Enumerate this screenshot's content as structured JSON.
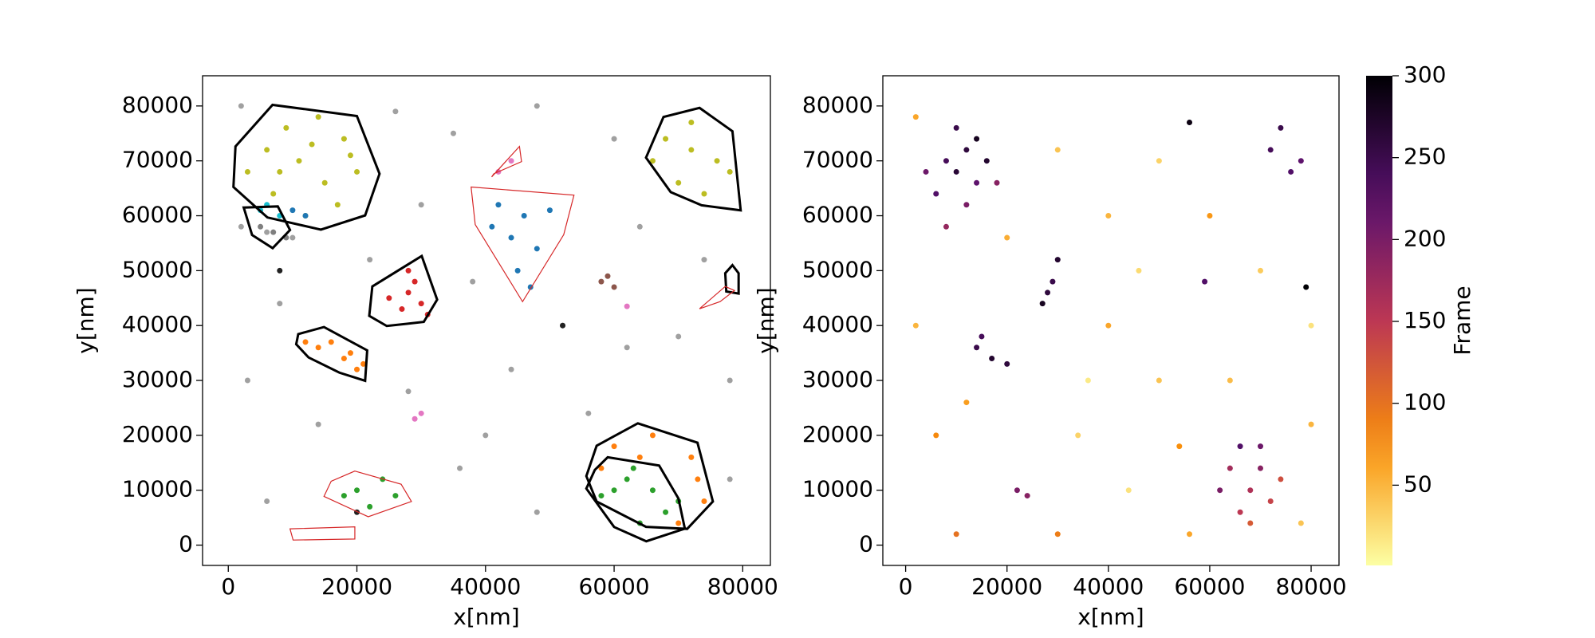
{
  "chart_data": [
    {
      "type": "scatter",
      "xlabel": "x[nm]",
      "ylabel": "y[nm]",
      "xlim": [
        -4000,
        84300
      ],
      "ylim": [
        -3700,
        85500
      ],
      "xticks": [
        0,
        20000,
        40000,
        60000,
        80000
      ],
      "yticks": [
        0,
        10000,
        20000,
        30000,
        40000,
        50000,
        60000,
        70000,
        80000
      ],
      "series": [
        {
          "color": "#a0a0a0",
          "x": [
            2000,
            26000,
            35000,
            48000,
            60000,
            30000,
            38000,
            52000,
            64000,
            74000,
            8000,
            3000,
            14000,
            28000,
            44000,
            56000,
            36000,
            48000,
            78000,
            70000,
            6000,
            40000,
            62000,
            78000,
            22000,
            10000,
            6000,
            2000
          ],
          "y": [
            80000,
            79000,
            75000,
            80000,
            74000,
            62000,
            48000,
            40000,
            58000,
            52000,
            44000,
            30000,
            22000,
            28000,
            32000,
            24000,
            14000,
            6000,
            30000,
            38000,
            8000,
            20000,
            36000,
            12000,
            52000,
            56000,
            57000,
            58000
          ]
        },
        {
          "color": "#bcbd22",
          "x": [
            6000,
            9000,
            14000,
            18000,
            20000,
            17000,
            12000,
            7000,
            3000,
            11000,
            15000,
            13000,
            8000,
            19000,
            68000,
            72000,
            76000,
            70000,
            74000,
            78000,
            66000,
            72000
          ],
          "y": [
            72000,
            76000,
            78000,
            74000,
            68000,
            62000,
            60000,
            64000,
            68000,
            70000,
            66000,
            73000,
            68000,
            71000,
            74000,
            72000,
            70000,
            66000,
            64000,
            68000,
            70000,
            77000
          ]
        },
        {
          "color": "#17becf",
          "x": [
            5000,
            8000,
            6000
          ],
          "y": [
            61000,
            60000,
            62000
          ]
        },
        {
          "color": "#1f77b4",
          "x": [
            10000,
            12000,
            42000,
            46000,
            50000,
            44000,
            48000,
            45000,
            41000,
            47000
          ],
          "y": [
            61000,
            60000,
            62000,
            60000,
            61000,
            56000,
            54000,
            50000,
            58000,
            47000
          ]
        },
        {
          "color": "#7f7f7f",
          "x": [
            7000,
            9000,
            5000
          ],
          "y": [
            57000,
            56000,
            58000
          ]
        },
        {
          "color": "#d62728",
          "x": [
            28000,
            30000,
            27000,
            29000,
            25000,
            31000,
            28000
          ],
          "y": [
            46000,
            44000,
            43000,
            48000,
            45000,
            42000,
            50000
          ]
        },
        {
          "color": "#ff7f0e",
          "x": [
            14000,
            18000,
            20000,
            16000,
            12000,
            21000,
            19000,
            60000,
            66000,
            72000,
            74000,
            70000,
            58000,
            64000,
            73000
          ],
          "y": [
            36000,
            34000,
            32000,
            37000,
            37000,
            33000,
            35000,
            18000,
            20000,
            16000,
            8000,
            4000,
            14000,
            16000,
            12000
          ]
        },
        {
          "color": "#2ca02c",
          "x": [
            62000,
            66000,
            68000,
            60000,
            64000,
            70000,
            63000,
            58000,
            20000,
            24000,
            26000,
            22000,
            18000
          ],
          "y": [
            12000,
            10000,
            6000,
            10000,
            4000,
            8000,
            14000,
            9000,
            10000,
            12000,
            9000,
            7000,
            9000
          ]
        },
        {
          "color": "#8c564b",
          "x": [
            58000,
            60000,
            59000
          ],
          "y": [
            48000,
            47000,
            49000
          ]
        },
        {
          "color": "#e377c2",
          "x": [
            42000,
            44000,
            30000,
            29000,
            62000
          ],
          "y": [
            68000,
            70000,
            24000,
            23000,
            43500
          ]
        },
        {
          "color": "#222222",
          "x": [
            8000,
            20000,
            52000
          ],
          "y": [
            50000,
            6000,
            40000
          ]
        }
      ],
      "hulls": [
        {
          "color": "#000000",
          "x": [
            6880,
            20000,
            23520,
            21280,
            14400,
            6080,
            800,
            1120
          ],
          "y": [
            80200,
            78170,
            67640,
            60060,
            57470,
            59690,
            65230,
            72630
          ]
        },
        {
          "color": "#000000",
          "x": [
            73280,
            78400,
            79680,
            73600,
            68800,
            64960,
            67680
          ],
          "y": [
            79650,
            75400,
            60980,
            61910,
            64310,
            70590,
            77990
          ]
        },
        {
          "color": "#000000",
          "x": [
            30080,
            32480,
            30400,
            24640,
            21920,
            22400
          ],
          "y": [
            52670,
            44720,
            40660,
            39920,
            41760,
            47120
          ]
        },
        {
          "color": "#000000",
          "x": [
            10880,
            14880,
            21600,
            21280,
            17280,
            12480,
            10560
          ],
          "y": [
            38440,
            39730,
            35480,
            29940,
            31420,
            34190,
            36590
          ]
        },
        {
          "color": "#000000",
          "x": [
            63680,
            72960,
            75360,
            71360,
            64960,
            57280,
            55680,
            57280
          ],
          "y": [
            22180,
            18660,
            7950,
            2960,
            3330,
            7950,
            12570,
            18110
          ]
        },
        {
          "color": "#000000",
          "x": [
            59000,
            67000,
            70000,
            71000,
            65000,
            60000,
            55680,
            57000
          ],
          "y": [
            16000,
            14500,
            8500,
            3000,
            700,
            3300,
            10300,
            13700
          ]
        },
        {
          "color": "#000000",
          "x": [
            2400,
            7700,
            9600,
            6900,
            3700
          ],
          "y": [
            61500,
            61700,
            57400,
            54100,
            56500
          ]
        },
        {
          "color": "#000000",
          "x": [
            78400,
            79360,
            79360,
            77440,
            77280
          ],
          "y": [
            51000,
            49530,
            45830,
            46200,
            49530
          ]
        },
        {
          "color": "#d62728",
          "x": [
            37760,
            53760,
            52160,
            45760,
            38400
          ],
          "y": [
            65230,
            63760,
            56550,
            44350,
            58400
          ]
        },
        {
          "color": "#d62728",
          "x": [
            19680,
            26880,
            28480,
            21760,
            14880,
            16000
          ],
          "y": [
            13490,
            11090,
            7950,
            5170,
            8870,
            11640
          ]
        },
        {
          "color": "#d62728",
          "x": [
            9600,
            19680,
            19680,
            10080
          ],
          "y": [
            2960,
            3330,
            1110,
            920
          ]
        },
        {
          "color": "#d62728",
          "x": [
            40960,
            45280,
            45600,
            41280
          ],
          "y": [
            67080,
            72630,
            69860,
            67640
          ]
        },
        {
          "color": "#d62728",
          "x": [
            73280,
            77280,
            78720,
            76480
          ],
          "y": [
            43060,
            47120,
            46380,
            44350
          ]
        }
      ]
    },
    {
      "type": "colorscatter",
      "xlabel": "x[nm]",
      "ylabel": "y[nm]",
      "xlim": [
        -4500,
        85500
      ],
      "ylim": [
        -3700,
        85500
      ],
      "xticks": [
        0,
        20000,
        40000,
        60000,
        80000
      ],
      "yticks": [
        0,
        10000,
        20000,
        30000,
        40000,
        50000,
        60000,
        70000,
        80000
      ],
      "colormap": "inferno_r",
      "clim": [
        1,
        300
      ],
      "cticks": [
        50,
        100,
        150,
        200,
        250,
        300
      ],
      "clabel": "Frame",
      "x": [
        8000,
        12000,
        14000,
        6000,
        10000,
        16000,
        4000,
        12000,
        18000,
        8000,
        14000,
        10000,
        64000,
        68000,
        70000,
        66000,
        72000,
        62000,
        66000,
        74000,
        68000,
        70000,
        72000,
        76000,
        74000,
        78000,
        28000,
        27000,
        29000,
        30000,
        14000,
        17000,
        20000,
        15000,
        59000,
        22000,
        24000,
        2000,
        30000,
        40000,
        50000,
        60000,
        80000,
        40000,
        50000,
        34000,
        6000,
        2000,
        44000,
        56000,
        78000,
        30000,
        10000,
        46000,
        64000,
        70000,
        20000,
        36000,
        54000,
        80000,
        12000,
        56000,
        79000
      ],
      "y": [
        70000,
        72000,
        66000,
        64000,
        76000,
        70000,
        68000,
        62000,
        66000,
        58000,
        74000,
        68000,
        14000,
        10000,
        14000,
        6000,
        8000,
        10000,
        18000,
        12000,
        4000,
        18000,
        72000,
        68000,
        76000,
        70000,
        46000,
        44000,
        48000,
        52000,
        36000,
        34000,
        33000,
        38000,
        48000,
        10000,
        9000,
        78000,
        72000,
        60000,
        70000,
        60000,
        40000,
        40000,
        30000,
        20000,
        20000,
        40000,
        10000,
        2000,
        4000,
        2000,
        2000,
        50000,
        30000,
        50000,
        56000,
        30000,
        18000,
        22000,
        26000,
        77000,
        47000
      ],
      "c": [
        240,
        260,
        220,
        230,
        250,
        270,
        210,
        200,
        190,
        180,
        280,
        265,
        170,
        160,
        190,
        150,
        140,
        200,
        230,
        130,
        120,
        210,
        240,
        230,
        250,
        220,
        260,
        280,
        250,
        270,
        250,
        270,
        260,
        240,
        230,
        200,
        190,
        60,
        40,
        50,
        30,
        70,
        20,
        60,
        40,
        30,
        80,
        50,
        20,
        60,
        40,
        90,
        100,
        25,
        45,
        35,
        55,
        15,
        75,
        50,
        65,
        290,
        300
      ]
    }
  ]
}
